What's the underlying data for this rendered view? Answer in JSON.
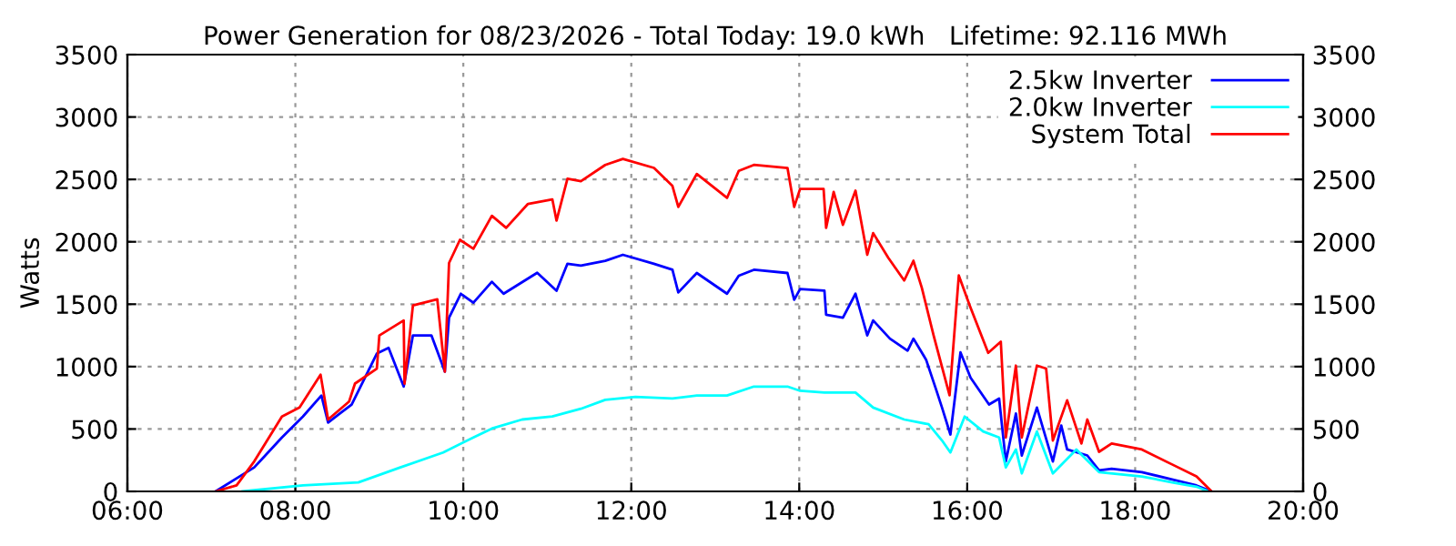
{
  "chart_data": {
    "type": "line",
    "title": "Power Generation for 08/23/2026 - Total Today: 19.0 kWh   Lifetime: 92.116 MWh",
    "ylabel": "Watts",
    "xlim": [
      6,
      20
    ],
    "xticks": [
      {
        "value": 6,
        "label": "06:00"
      },
      {
        "value": 8,
        "label": "08:00"
      },
      {
        "value": 10,
        "label": "10:00"
      },
      {
        "value": 12,
        "label": "12:00"
      },
      {
        "value": 14,
        "label": "14:00"
      },
      {
        "value": 16,
        "label": "16:00"
      },
      {
        "value": 18,
        "label": "18:00"
      },
      {
        "value": 20,
        "label": "20:00"
      }
    ],
    "ylim": [
      0,
      3500
    ],
    "yticks": [
      0,
      500,
      1000,
      1500,
      2000,
      2500,
      3000,
      3500
    ],
    "y2lim": [
      0,
      3500
    ],
    "y2ticks": [
      0,
      500,
      1000,
      1500,
      2000,
      2500,
      3000,
      3500
    ],
    "grid": true,
    "legend": "top right",
    "line_style": "solid",
    "marker": "none",
    "series": [
      {
        "name": "2.5kw Inverter",
        "color": "#0000ff",
        "x": [
          7.05,
          7.51,
          7.84,
          8.09,
          8.31,
          8.39,
          8.53,
          8.67,
          8.97,
          9.11,
          9.29,
          9.4,
          9.62,
          9.78,
          9.83,
          9.97,
          10.12,
          10.34,
          10.48,
          10.88,
          11.11,
          11.24,
          11.4,
          11.69,
          11.9,
          12.27,
          12.49,
          12.56,
          12.78,
          13.14,
          13.28,
          13.46,
          13.86,
          13.94,
          14.01,
          14.3,
          14.32,
          14.52,
          14.67,
          14.81,
          14.88,
          15.08,
          15.29,
          15.36,
          15.51,
          15.63,
          15.7,
          15.8,
          15.92,
          16.04,
          16.26,
          16.38,
          16.46,
          16.58,
          16.65,
          16.83,
          17.02,
          17.12,
          17.19,
          17.43,
          17.57,
          17.72,
          18.08,
          18.44,
          18.73,
          18.91
        ],
        "values": [
          0,
          192,
          432,
          600,
          768,
          552,
          624,
          696,
          1104,
          1150,
          840,
          1250,
          1250,
          960,
          1392,
          1584,
          1512,
          1680,
          1584,
          1752,
          1608,
          1824,
          1810,
          1848,
          1896,
          1824,
          1776,
          1594,
          1750,
          1584,
          1728,
          1776,
          1750,
          1536,
          1622,
          1608,
          1416,
          1392,
          1584,
          1250,
          1370,
          1224,
          1128,
          1224,
          1056,
          816,
          672,
          456,
          1114,
          912,
          696,
          744,
          240,
          624,
          288,
          672,
          240,
          528,
          336,
          288,
          168,
          182,
          154,
          96,
          48,
          0
        ]
      },
      {
        "name": "2.0kw Inverter",
        "color": "#00ffff",
        "x": [
          7.37,
          8.09,
          8.75,
          9.25,
          9.76,
          10.12,
          10.34,
          10.7,
          11.06,
          11.4,
          11.69,
          12.05,
          12.49,
          12.78,
          13.14,
          13.46,
          13.86,
          14.01,
          14.3,
          14.67,
          14.88,
          15.25,
          15.54,
          15.7,
          15.8,
          15.97,
          16.19,
          16.38,
          16.46,
          16.58,
          16.65,
          16.83,
          17.02,
          17.3,
          17.57,
          18.08,
          18.44,
          18.73,
          18.87
        ],
        "values": [
          0,
          48,
          72,
          192,
          312,
          432,
          504,
          576,
          600,
          662,
          734,
          758,
          744,
          768,
          768,
          840,
          840,
          806,
          792,
          792,
          672,
          576,
          538,
          408,
          312,
          600,
          480,
          432,
          192,
          336,
          144,
          480,
          144,
          336,
          154,
          120,
          72,
          38,
          0
        ]
      },
      {
        "name": "System Total",
        "color": "#ff0000",
        "x": [
          7.05,
          7.3,
          7.51,
          7.84,
          8.05,
          8.3,
          8.39,
          8.64,
          8.71,
          8.97,
          9.0,
          9.29,
          9.3,
          9.4,
          9.69,
          9.78,
          9.83,
          9.96,
          10.12,
          10.34,
          10.51,
          10.77,
          11.06,
          11.11,
          11.24,
          11.4,
          11.69,
          11.9,
          12.27,
          12.49,
          12.56,
          12.78,
          13.14,
          13.28,
          13.46,
          13.86,
          13.94,
          14.01,
          14.29,
          14.32,
          14.41,
          14.52,
          14.67,
          14.81,
          14.88,
          15.06,
          15.25,
          15.36,
          15.46,
          15.6,
          15.79,
          15.9,
          16.03,
          16.25,
          16.4,
          16.46,
          16.58,
          16.65,
          16.83,
          16.94,
          17.02,
          17.19,
          17.36,
          17.43,
          17.57,
          17.72,
          18.08,
          18.44,
          18.73,
          18.91
        ],
        "values": [
          0,
          48,
          240,
          600,
          672,
          936,
          576,
          720,
          864,
          984,
          1250,
          1370,
          864,
          1490,
          1540,
          960,
          1830,
          2016,
          1944,
          2208,
          2112,
          2304,
          2340,
          2170,
          2506,
          2486,
          2616,
          2664,
          2592,
          2448,
          2280,
          2544,
          2352,
          2568,
          2616,
          2592,
          2280,
          2424,
          2424,
          2112,
          2400,
          2136,
          2410,
          1896,
          2070,
          1872,
          1690,
          1848,
          1630,
          1250,
          770,
          1730,
          1490,
          1110,
          1200,
          432,
          1008,
          432,
          1008,
          984,
          408,
          730,
          384,
          576,
          317,
          384,
          336,
          216,
          120,
          0
        ]
      }
    ]
  }
}
